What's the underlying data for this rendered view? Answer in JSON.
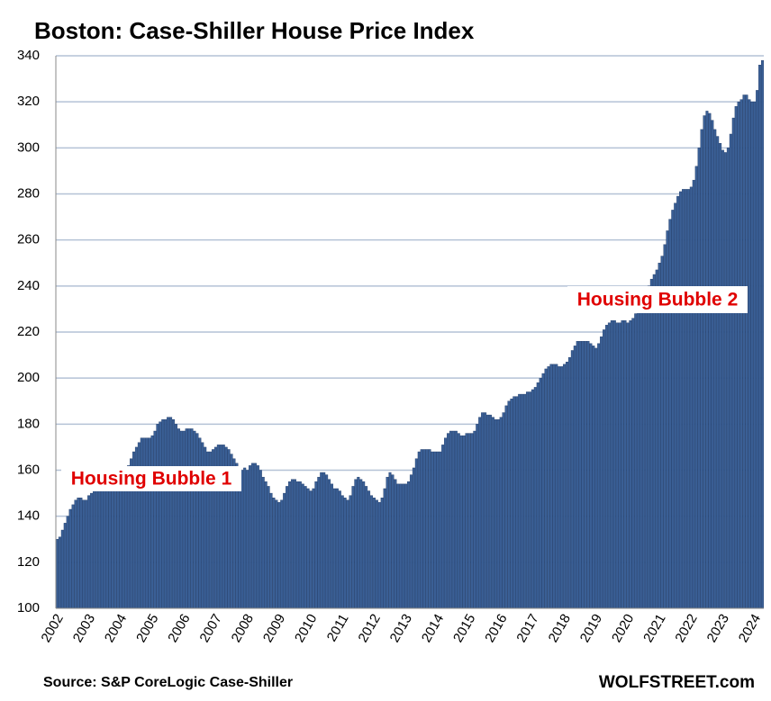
{
  "chart_data": {
    "type": "bar",
    "title": "Boston: Case-Shiller House Price Index",
    "source": "Source: S&P CoreLogic Case-Shiller",
    "credit": "WOLFSTREET.com",
    "annotations": [
      "Housing Bubble 1",
      "Housing Bubble 2"
    ],
    "color": "#3a5f95",
    "ylim": [
      100,
      340
    ],
    "yticks": [
      100,
      120,
      140,
      160,
      180,
      200,
      220,
      240,
      260,
      280,
      300,
      320,
      340
    ],
    "grid": true,
    "categories": [
      "2002",
      null,
      null,
      null,
      null,
      null,
      null,
      null,
      null,
      null,
      null,
      null,
      "2003",
      null,
      null,
      null,
      null,
      null,
      null,
      null,
      null,
      null,
      null,
      null,
      "2004",
      null,
      null,
      null,
      null,
      null,
      null,
      null,
      null,
      null,
      null,
      null,
      "2005",
      null,
      null,
      null,
      null,
      null,
      null,
      null,
      null,
      null,
      null,
      null,
      "2006",
      null,
      null,
      null,
      null,
      null,
      null,
      null,
      null,
      null,
      null,
      null,
      "2007",
      null,
      null,
      null,
      null,
      null,
      null,
      null,
      null,
      null,
      null,
      null,
      "2008",
      null,
      null,
      null,
      null,
      null,
      null,
      null,
      null,
      null,
      null,
      null,
      "2009",
      null,
      null,
      null,
      null,
      null,
      null,
      null,
      null,
      null,
      null,
      null,
      "2010",
      null,
      null,
      null,
      null,
      null,
      null,
      null,
      null,
      null,
      null,
      null,
      "2011",
      null,
      null,
      null,
      null,
      null,
      null,
      null,
      null,
      null,
      null,
      null,
      "2012",
      null,
      null,
      null,
      null,
      null,
      null,
      null,
      null,
      null,
      null,
      null,
      "2013",
      null,
      null,
      null,
      null,
      null,
      null,
      null,
      null,
      null,
      null,
      null,
      "2014",
      null,
      null,
      null,
      null,
      null,
      null,
      null,
      null,
      null,
      null,
      null,
      "2015",
      null,
      null,
      null,
      null,
      null,
      null,
      null,
      null,
      null,
      null,
      null,
      "2016",
      null,
      null,
      null,
      null,
      null,
      null,
      null,
      null,
      null,
      null,
      null,
      "2017",
      null,
      null,
      null,
      null,
      null,
      null,
      null,
      null,
      null,
      null,
      null,
      "2018",
      null,
      null,
      null,
      null,
      null,
      null,
      null,
      null,
      null,
      null,
      null,
      "2019",
      null,
      null,
      null,
      null,
      null,
      null,
      null,
      null,
      null,
      null,
      null,
      "2020",
      null,
      null,
      null,
      null,
      null,
      null,
      null,
      null,
      null,
      null,
      null,
      "2021",
      null,
      null,
      null,
      null,
      null,
      null,
      null,
      null,
      null,
      null,
      null,
      "2022",
      null,
      null,
      null,
      null,
      null,
      null,
      null,
      null,
      null,
      null,
      null,
      "2023",
      null,
      null,
      null,
      null,
      null,
      null,
      null,
      null,
      null,
      null,
      null,
      "2024",
      null,
      null,
      null
    ],
    "values": [
      130,
      131,
      134,
      137,
      140,
      143,
      145,
      147,
      148,
      148,
      147,
      147,
      149,
      150,
      151,
      152,
      153,
      154,
      155,
      156,
      156,
      156,
      155,
      155,
      156,
      157,
      159,
      162,
      165,
      168,
      170,
      172,
      174,
      174,
      174,
      174,
      175,
      177,
      180,
      181,
      182,
      182,
      183,
      183,
      182,
      180,
      178,
      177,
      177,
      178,
      178,
      178,
      177,
      176,
      174,
      172,
      170,
      168,
      168,
      169,
      170,
      171,
      171,
      171,
      170,
      169,
      167,
      165,
      163,
      161,
      160,
      161,
      160,
      162,
      163,
      163,
      162,
      160,
      157,
      155,
      153,
      150,
      148,
      147,
      146,
      147,
      150,
      153,
      155,
      156,
      156,
      155,
      155,
      154,
      153,
      152,
      151,
      152,
      155,
      157,
      159,
      159,
      158,
      156,
      154,
      152,
      152,
      151,
      149,
      148,
      147,
      149,
      153,
      156,
      157,
      156,
      155,
      153,
      151,
      149,
      148,
      147,
      146,
      148,
      152,
      157,
      159,
      158,
      156,
      154,
      154,
      154,
      154,
      155,
      158,
      161,
      165,
      168,
      169,
      169,
      169,
      169,
      168,
      168,
      168,
      168,
      171,
      174,
      176,
      177,
      177,
      177,
      176,
      175,
      175,
      176,
      176,
      176,
      177,
      180,
      183,
      185,
      185,
      184,
      184,
      183,
      182,
      182,
      183,
      185,
      188,
      190,
      191,
      192,
      192,
      193,
      193,
      193,
      194,
      194,
      195,
      196,
      198,
      200,
      202,
      204,
      205,
      206,
      206,
      206,
      205,
      205,
      206,
      207,
      209,
      212,
      214,
      216,
      216,
      216,
      216,
      216,
      215,
      214,
      213,
      215,
      218,
      221,
      223,
      224,
      225,
      225,
      224,
      224,
      225,
      225,
      224,
      225,
      226,
      228,
      230,
      232,
      234,
      237,
      240,
      243,
      245,
      247,
      250,
      253,
      258,
      264,
      269,
      273,
      276,
      279,
      281,
      282,
      282,
      282,
      283,
      286,
      292,
      300,
      308,
      314,
      316,
      315,
      312,
      308,
      305,
      302,
      299,
      298,
      300,
      306,
      313,
      318,
      320,
      321,
      323,
      323,
      321,
      320,
      320,
      325,
      336,
      338
    ]
  }
}
